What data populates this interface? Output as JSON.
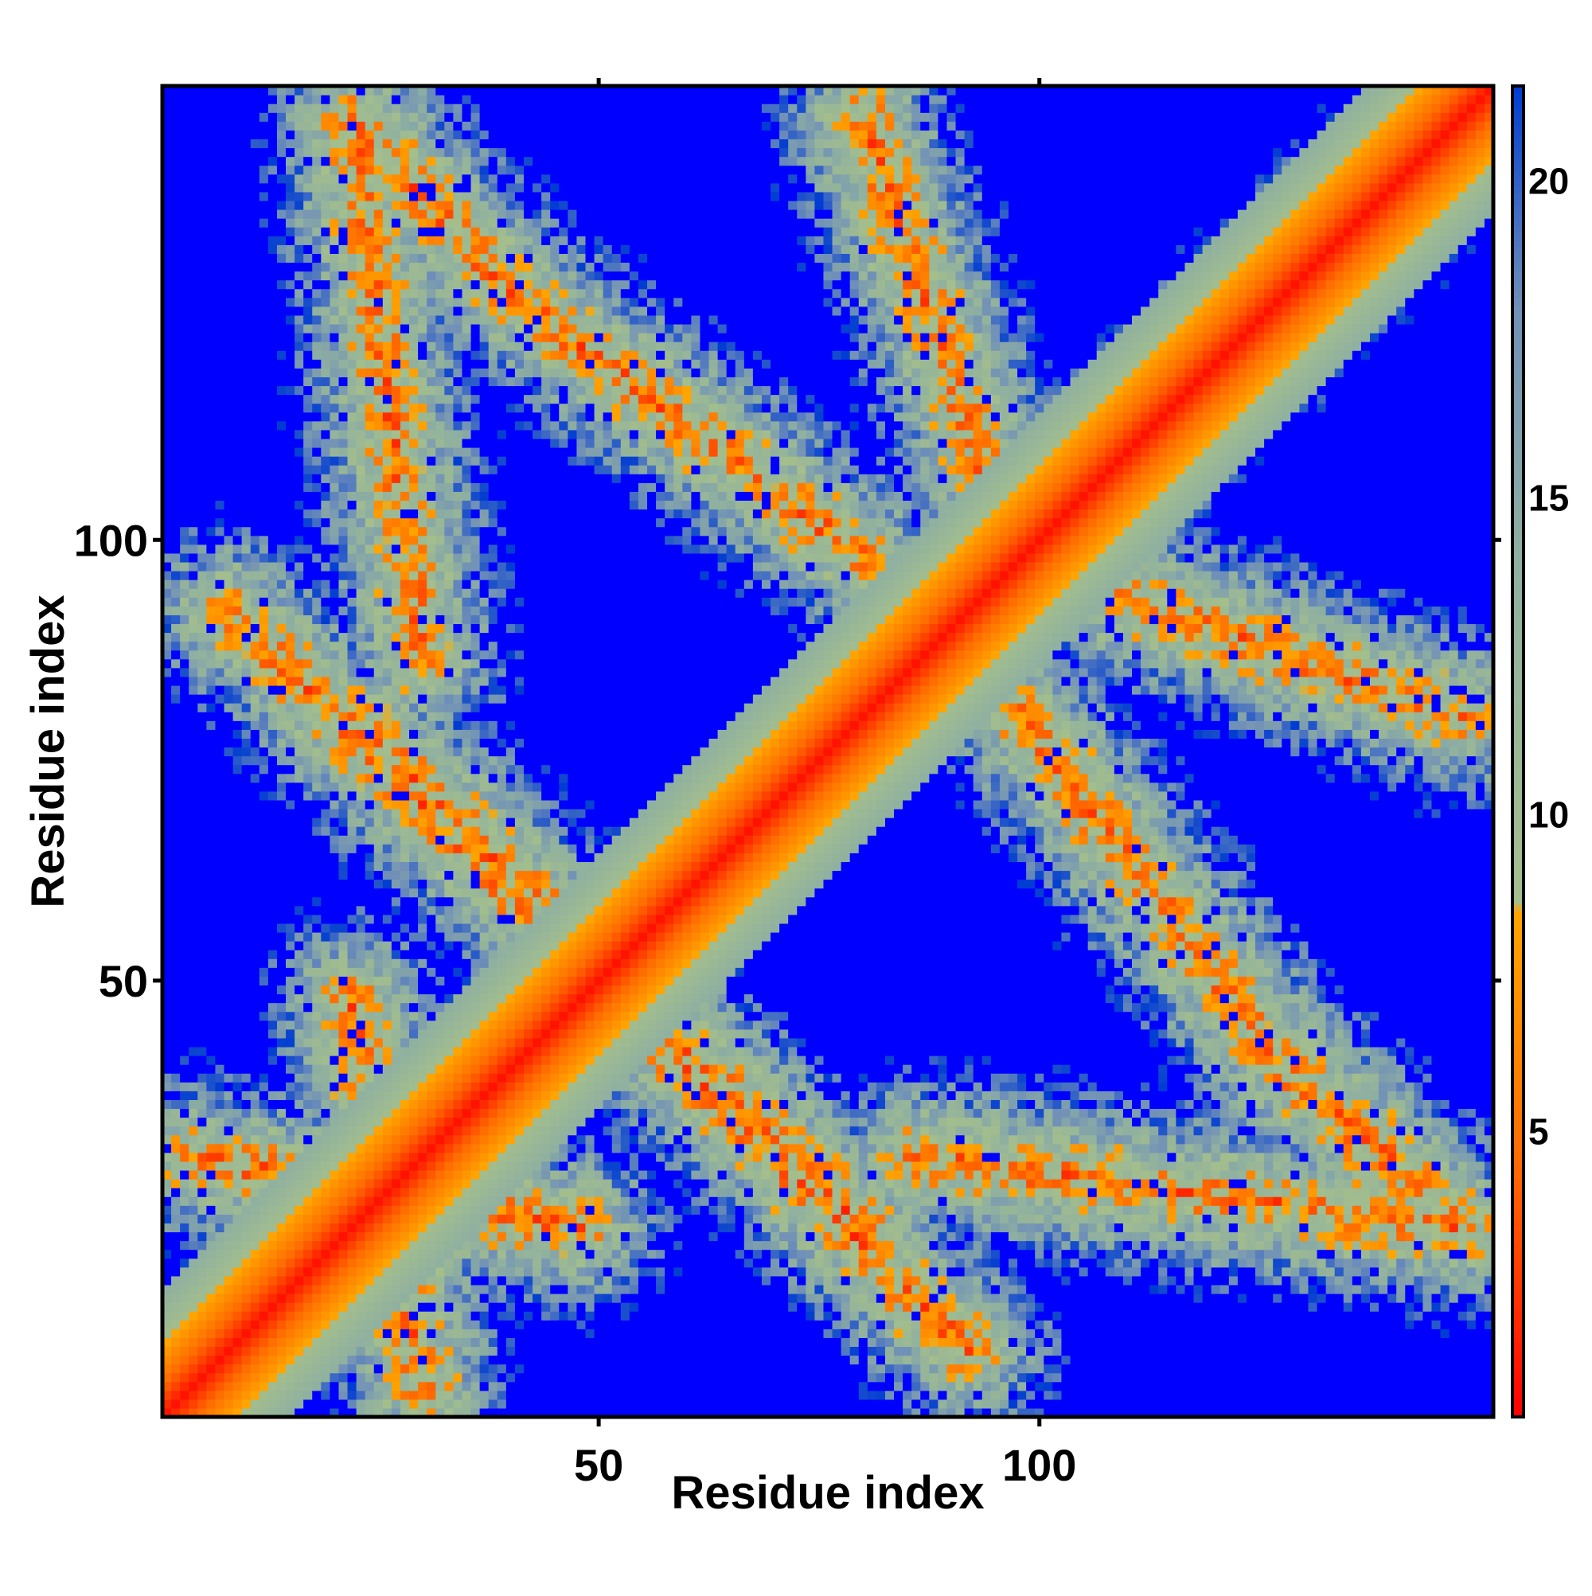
{
  "chart_data": {
    "type": "heatmap",
    "title": "",
    "xlabel": "Residue index",
    "ylabel": "Residue index",
    "n_residues": 151,
    "xlim": [
      1,
      151
    ],
    "ylim": [
      1,
      151
    ],
    "x_ticks": [
      50,
      100
    ],
    "y_ticks": [
      50,
      100
    ],
    "colorbar": {
      "ticks": [
        5,
        10,
        15,
        20
      ],
      "range": [
        0.5,
        21.5
      ],
      "stops": [
        {
          "value": 0.5,
          "color": "#ff0000"
        },
        {
          "value": 4.5,
          "color": "#ff6a00"
        },
        {
          "value": 8.5,
          "color": "#ffa500"
        },
        {
          "value": 8.6,
          "color": "#a4be8c"
        },
        {
          "value": 14.0,
          "color": "#8fb0a0"
        },
        {
          "value": 18.0,
          "color": "#7090b8"
        },
        {
          "value": 21.5,
          "color": "#003cd2"
        }
      ],
      "saturation_color": "#0000ff"
    },
    "description": "Symmetric residue–residue distance map: red/orange (short distance) along the main diagonal, green/grey-blue (intermediate) bands forming secondary contact patterns, blue (>21) elsewhere.",
    "contact_bands": [
      {
        "a": [
          4,
          30
        ],
        "b": [
          48,
          22
        ],
        "label": ""
      },
      {
        "a": [
          46,
          56
        ],
        "b": [
          80,
          22
        ],
        "label": ""
      },
      {
        "a": [
          50,
          50
        ],
        "b": [
          146,
          146
        ],
        "label": "diagonal"
      },
      {
        "a": [
          52,
          48
        ],
        "b": [
          92,
          8
        ],
        "label": ""
      },
      {
        "a": [
          86,
          30
        ],
        "b": [
          148,
          22
        ],
        "label": ""
      },
      {
        "a": [
          86,
          85
        ],
        "b": [
          148,
          148
        ],
        "label": ""
      },
      {
        "a": [
          102,
          96
        ],
        "b": [
          148,
          80
        ],
        "label": ""
      },
      {
        "a": [
          22,
          148
        ],
        "b": [
          40,
          128
        ],
        "label": ""
      },
      {
        "a": [
          40,
          128
        ],
        "b": [
          80,
          98
        ],
        "label": ""
      }
    ],
    "grid": false,
    "legend": "colorbar-right"
  }
}
